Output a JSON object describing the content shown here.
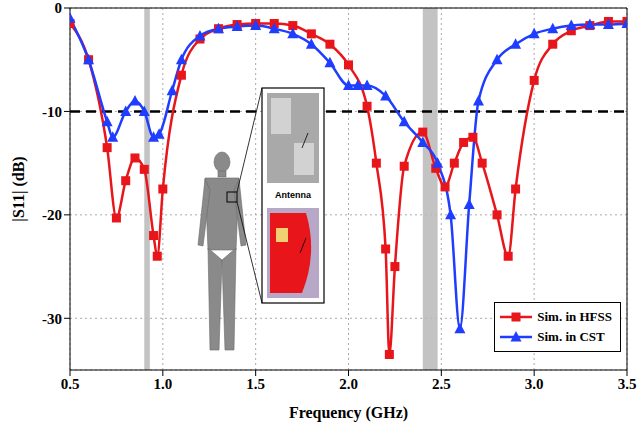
{
  "chart_data": {
    "type": "line",
    "xlabel": "Frequency (GHz)",
    "ylabel": "|S11| (dB)",
    "xlim": [
      0.5,
      3.5
    ],
    "xticks": [
      0.5,
      {
        "value": 1,
        "label": "1.0"
      },
      1.5,
      {
        "value": 2,
        "label": "2.0"
      },
      2.5,
      {
        "value": 3,
        "label": "3.0"
      },
      3.5
    ],
    "ylim": [
      -35,
      0
    ],
    "yticks": [
      -30,
      -20,
      -10,
      0
    ],
    "grid": true,
    "legend": "lower right",
    "reference_line": -10,
    "bands": [
      [
        0.9,
        0.93
      ],
      [
        2.4,
        2.48
      ]
    ],
    "annotations": [
      "Antenna"
    ],
    "series": [
      {
        "name": "Sim. in HFSS",
        "color": "#e8151b",
        "marker": "square",
        "x": [
          0.5,
          0.6,
          0.7,
          0.75,
          0.8,
          0.85,
          0.9,
          0.95,
          0.97,
          1.0,
          1.1,
          1.2,
          1.3,
          1.4,
          1.5,
          1.6,
          1.7,
          1.8,
          1.9,
          2.0,
          2.1,
          2.15,
          2.2,
          2.22,
          2.25,
          2.3,
          2.4,
          2.47,
          2.52,
          2.57,
          2.62,
          2.67,
          2.72,
          2.8,
          2.86,
          2.9,
          3.0,
          3.1,
          3.2,
          3.3,
          3.4,
          3.5
        ],
        "values": [
          -1.5,
          -5,
          -13.5,
          -20.3,
          -16.7,
          -14.5,
          -15.6,
          -22,
          -24,
          -17.5,
          -6.5,
          -3,
          -2,
          -1.6,
          -1.5,
          -1.5,
          -1.7,
          -2.5,
          -3.5,
          -5.5,
          -9.5,
          -15,
          -23.3,
          -33.5,
          -25,
          -15.3,
          -12,
          -15.5,
          -17.3,
          -15,
          -13,
          -12.5,
          -15,
          -20,
          -24,
          -17.5,
          -7,
          -3.5,
          -2.2,
          -1.7,
          -1.3,
          -1.3
        ]
      },
      {
        "name": "Sim. in CST",
        "color": "#1f3dff",
        "marker": "triangle",
        "x": [
          0.5,
          0.6,
          0.7,
          0.73,
          0.8,
          0.85,
          0.9,
          0.95,
          0.98,
          1.05,
          1.1,
          1.2,
          1.3,
          1.4,
          1.5,
          1.6,
          1.7,
          1.8,
          1.9,
          2.0,
          2.05,
          2.1,
          2.2,
          2.3,
          2.4,
          2.48,
          2.55,
          2.6,
          2.65,
          2.7,
          2.8,
          2.9,
          3.0,
          3.1,
          3.2,
          3.3,
          3.4,
          3.5
        ],
        "values": [
          -1,
          -5,
          -11,
          -12.5,
          -10,
          -9,
          -10,
          -12.5,
          -12.2,
          -8,
          -5,
          -2.7,
          -2,
          -1.8,
          -1.7,
          -2,
          -2.5,
          -3.5,
          -5.3,
          -7.5,
          -7.5,
          -7.5,
          -8.5,
          -11,
          -13,
          -15,
          -20,
          -31,
          -19,
          -9,
          -5,
          -3.5,
          -2.5,
          -2,
          -1.7,
          -1.6,
          -1.6,
          -1.5
        ]
      }
    ]
  }
}
